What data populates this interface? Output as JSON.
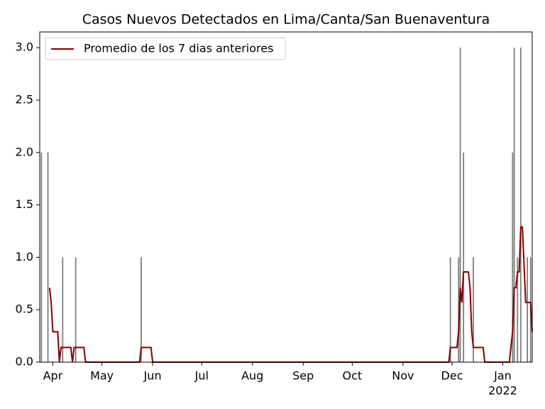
{
  "chart_data": {
    "type": "bar_line",
    "title": "Casos Nuevos Detectados en Lima/Canta/San Buenaventura",
    "bars": {
      "color": "#808080",
      "x": [
        "2021-03-25",
        "2021-03-29",
        "2021-04-07",
        "2021-04-15",
        "2021-05-25",
        "2021-11-30",
        "2021-12-05",
        "2021-12-06",
        "2021-12-08",
        "2021-12-14",
        "2022-01-07",
        "2022-01-08",
        "2022-01-10",
        "2022-01-12",
        "2022-01-16",
        "2022-01-18"
      ],
      "values": [
        2,
        2,
        1,
        1,
        1,
        1,
        1,
        3,
        2,
        1,
        2,
        3,
        1,
        3,
        1,
        1
      ]
    },
    "series": [
      {
        "name": "Promedio de los 7 dias anteriores",
        "color": "#800000",
        "x": [
          "2021-03-30",
          "2021-03-31",
          "2021-04-01",
          "2021-04-04",
          "2021-04-05",
          "2021-04-06",
          "2021-04-12",
          "2021-04-13",
          "2021-04-14",
          "2021-04-20",
          "2021-04-21",
          "2021-05-24",
          "2021-05-25",
          "2021-05-31",
          "2021-06-01",
          "2021-11-29",
          "2021-11-30",
          "2021-12-04",
          "2021-12-05",
          "2021-12-06",
          "2021-12-07",
          "2021-12-08",
          "2021-12-11",
          "2021-12-12",
          "2021-12-13",
          "2021-12-14",
          "2021-12-20",
          "2021-12-21",
          "2022-01-05",
          "2022-01-07",
          "2022-01-08",
          "2022-01-09",
          "2022-01-10",
          "2022-01-11",
          "2022-01-12",
          "2022-01-13",
          "2022-01-15",
          "2022-01-18",
          "2022-01-19"
        ],
        "values": [
          0.71,
          0.57,
          0.29,
          0.29,
          0,
          0.14,
          0.14,
          0,
          0.14,
          0.14,
          0,
          0,
          0.14,
          0.14,
          0,
          0,
          0.14,
          0.14,
          0.29,
          0.71,
          0.57,
          0.86,
          0.86,
          0.71,
          0.29,
          0.14,
          0.14,
          0,
          0,
          0.29,
          0.71,
          0.71,
          0.86,
          0.86,
          1.29,
          1.29,
          0.57,
          0.57,
          0.29
        ]
      }
    ],
    "xlim": [
      "2021-03-24",
      "2022-01-19"
    ],
    "xticks": [
      {
        "value": "2021-04-01",
        "label": "Apr"
      },
      {
        "value": "2021-05-01",
        "label": "May"
      },
      {
        "value": "2021-06-01",
        "label": "Jun"
      },
      {
        "value": "2021-07-01",
        "label": "Jul"
      },
      {
        "value": "2021-08-01",
        "label": "Aug"
      },
      {
        "value": "2021-09-01",
        "label": "Sep"
      },
      {
        "value": "2021-10-01",
        "label": "Oct"
      },
      {
        "value": "2021-11-01",
        "label": "Nov"
      },
      {
        "value": "2021-12-01",
        "label": "Dec"
      },
      {
        "value": "2022-01-01",
        "label": "Jan"
      }
    ],
    "x_year_label": "2022",
    "ylim": [
      0,
      3.15
    ],
    "yticks": [
      {
        "value": 0,
        "label": "0.0"
      },
      {
        "value": 0.5,
        "label": "0.5"
      },
      {
        "value": 1,
        "label": "1.0"
      },
      {
        "value": 1.5,
        "label": "1.5"
      },
      {
        "value": 2,
        "label": "2.0"
      },
      {
        "value": 2.5,
        "label": "2.5"
      },
      {
        "value": 3,
        "label": "3.0"
      }
    ],
    "legend": "upper left"
  }
}
